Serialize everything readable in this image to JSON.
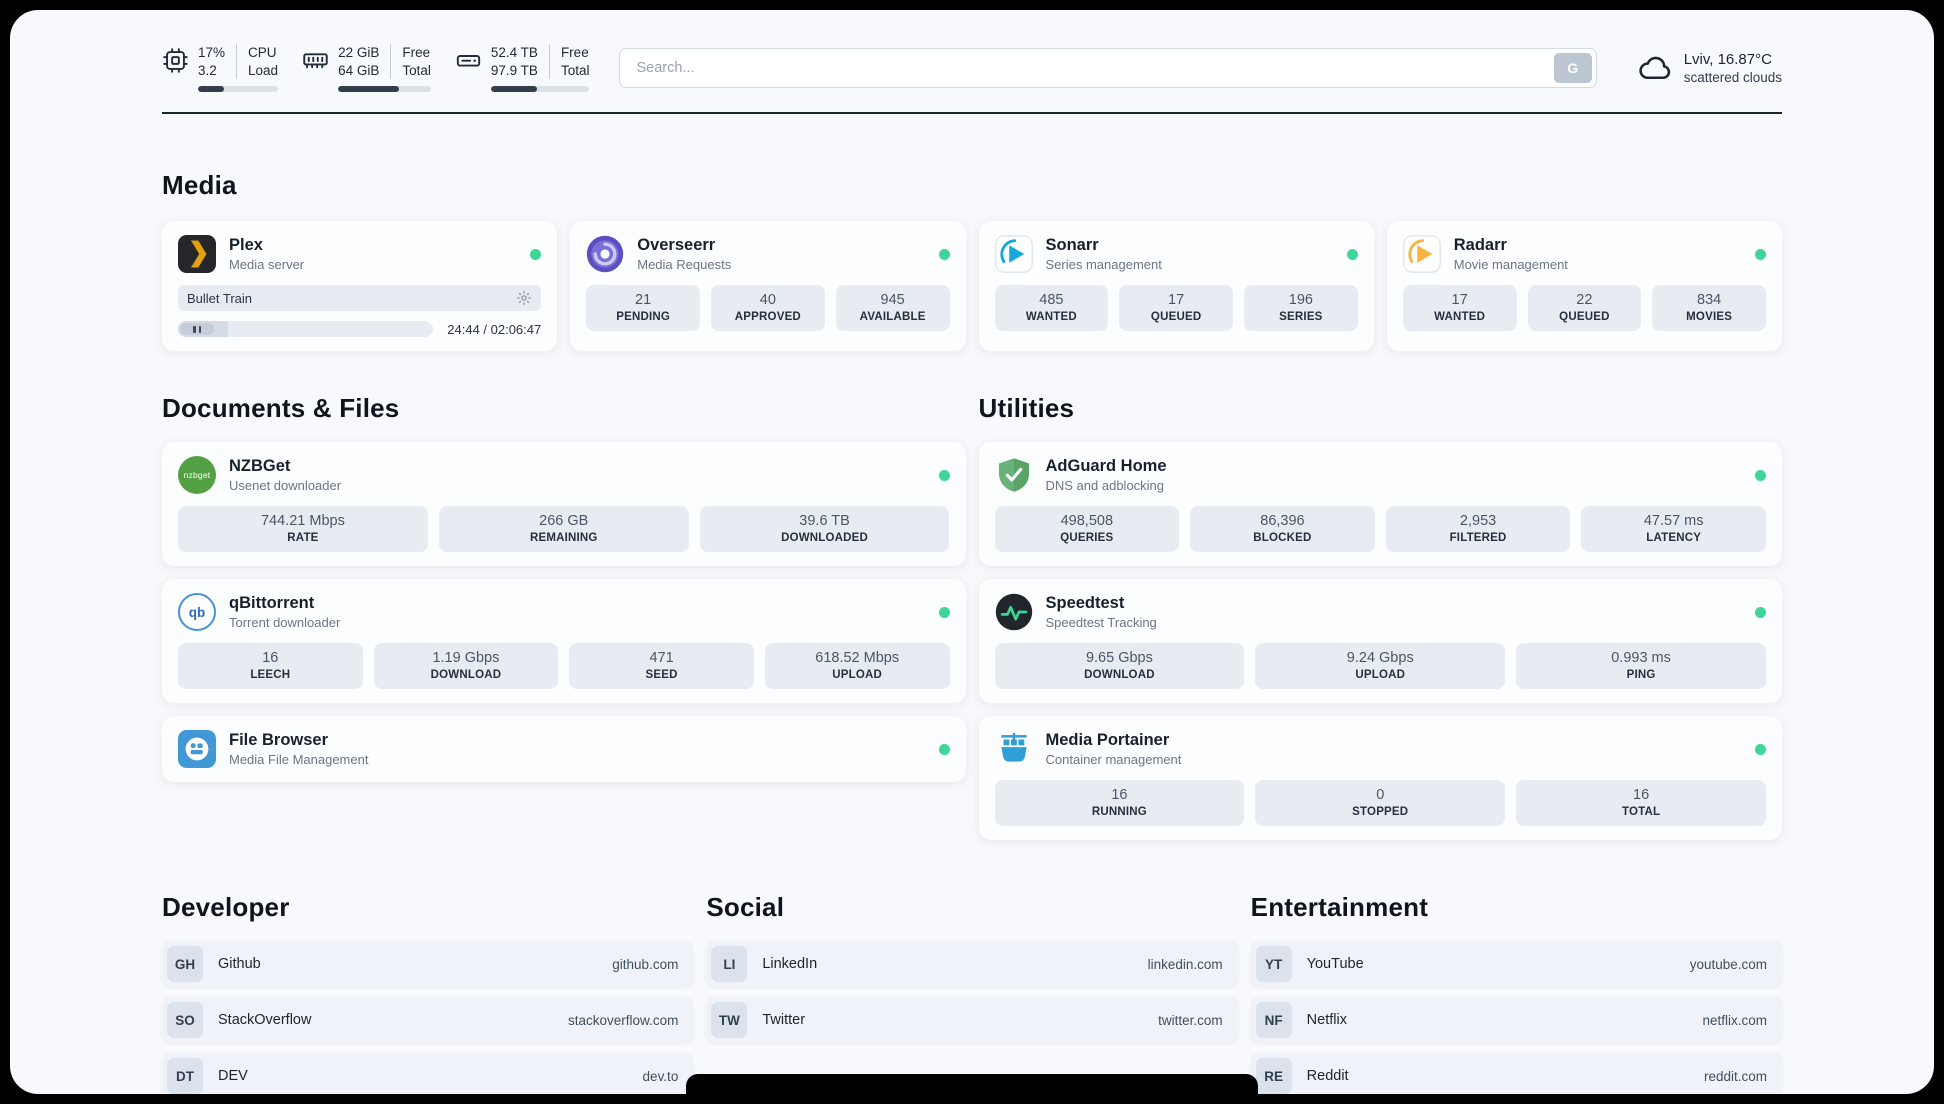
{
  "colors": {
    "status_online": "#3ed598",
    "plex_accent": "#e5a00d",
    "overseerr": "#5d4fc0",
    "sonarr": "#15a8dc",
    "radarr": "#f5b53f",
    "nzbget": "#52a043",
    "qbittorrent": "#2f6cb5",
    "filebrowser": "#4198d7",
    "adguard": "#68b279",
    "speedtest_line": "#3ed598",
    "portainer": "#2f9fd6"
  },
  "topbar": {
    "cpu": {
      "value1": "17%",
      "value2": "3.2",
      "label1": "CPU",
      "label2": "Load",
      "bar_percent": 32
    },
    "ram": {
      "value1": "22 GiB",
      "value2": "64 GiB",
      "label1": "Free",
      "label2": "Total",
      "bar_percent": 66
    },
    "disk": {
      "value1": "52.4 TB",
      "value2": "97.9 TB",
      "label1": "Free",
      "label2": "Total",
      "bar_percent": 47
    },
    "search": {
      "placeholder": "Search...",
      "button": "G"
    },
    "weather": {
      "location": "Lviv, 16.87°C",
      "condition": "scattered clouds"
    }
  },
  "media": {
    "title": "Media",
    "plex": {
      "name": "Plex",
      "subtitle": "Media server",
      "now_playing": "Bullet Train",
      "time": "24:44 / 02:06:47",
      "progress_percent": 19.5
    },
    "overseerr": {
      "name": "Overseerr",
      "subtitle": "Media Requests",
      "stats": [
        {
          "value": "21",
          "label": "PENDING"
        },
        {
          "value": "40",
          "label": "APPROVED"
        },
        {
          "value": "945",
          "label": "AVAILABLE"
        }
      ]
    },
    "sonarr": {
      "name": "Sonarr",
      "subtitle": "Series management",
      "stats": [
        {
          "value": "485",
          "label": "WANTED"
        },
        {
          "value": "17",
          "label": "QUEUED"
        },
        {
          "value": "196",
          "label": "SERIES"
        }
      ]
    },
    "radarr": {
      "name": "Radarr",
      "subtitle": "Movie management",
      "stats": [
        {
          "value": "17",
          "label": "WANTED"
        },
        {
          "value": "22",
          "label": "QUEUED"
        },
        {
          "value": "834",
          "label": "MOVIES"
        }
      ]
    }
  },
  "documents": {
    "title": "Documents & Files",
    "nzbget": {
      "name": "NZBGet",
      "subtitle": "Usenet downloader",
      "icon_text": "nzbget",
      "stats": [
        {
          "value": "744.21 Mbps",
          "label": "RATE"
        },
        {
          "value": "266 GB",
          "label": "REMAINING"
        },
        {
          "value": "39.6 TB",
          "label": "DOWNLOADED"
        }
      ]
    },
    "qbittorrent": {
      "name": "qBittorrent",
      "subtitle": "Torrent downloader",
      "icon_text": "qb",
      "stats": [
        {
          "value": "16",
          "label": "LEECH"
        },
        {
          "value": "1.19 Gbps",
          "label": "DOWNLOAD"
        },
        {
          "value": "471",
          "label": "SEED"
        },
        {
          "value": "618.52 Mbps",
          "label": "UPLOAD"
        }
      ]
    },
    "filebrowser": {
      "name": "File Browser",
      "subtitle": "Media File Management"
    }
  },
  "utilities": {
    "title": "Utilities",
    "adguard": {
      "name": "AdGuard Home",
      "subtitle": "DNS and adblocking",
      "stats": [
        {
          "value": "498,508",
          "label": "QUERIES"
        },
        {
          "value": "86,396",
          "label": "BLOCKED"
        },
        {
          "value": "2,953",
          "label": "FILTERED"
        },
        {
          "value": "47.57 ms",
          "label": "LATENCY"
        }
      ]
    },
    "speedtest": {
      "name": "Speedtest",
      "subtitle": "Speedtest Tracking",
      "stats": [
        {
          "value": "9.65 Gbps",
          "label": "DOWNLOAD"
        },
        {
          "value": "9.24 Gbps",
          "label": "UPLOAD"
        },
        {
          "value": "0.993 ms",
          "label": "PING"
        }
      ]
    },
    "portainer": {
      "name": "Media Portainer",
      "subtitle": "Container management",
      "stats": [
        {
          "value": "16",
          "label": "RUNNING"
        },
        {
          "value": "0",
          "label": "STOPPED"
        },
        {
          "value": "16",
          "label": "TOTAL"
        }
      ]
    }
  },
  "bookmarks": [
    {
      "title": "Developer",
      "items": [
        {
          "abbr": "GH",
          "name": "Github",
          "url": "github.com"
        },
        {
          "abbr": "SO",
          "name": "StackOverflow",
          "url": "stackoverflow.com"
        },
        {
          "abbr": "DT",
          "name": "DEV",
          "url": "dev.to"
        }
      ]
    },
    {
      "title": "Social",
      "items": [
        {
          "abbr": "LI",
          "name": "LinkedIn",
          "url": "linkedin.com"
        },
        {
          "abbr": "TW",
          "name": "Twitter",
          "url": "twitter.com"
        }
      ]
    },
    {
      "title": "Entertainment",
      "items": [
        {
          "abbr": "YT",
          "name": "YouTube",
          "url": "youtube.com"
        },
        {
          "abbr": "NF",
          "name": "Netflix",
          "url": "netflix.com"
        },
        {
          "abbr": "RE",
          "name": "Reddit",
          "url": "reddit.com"
        }
      ]
    }
  ]
}
